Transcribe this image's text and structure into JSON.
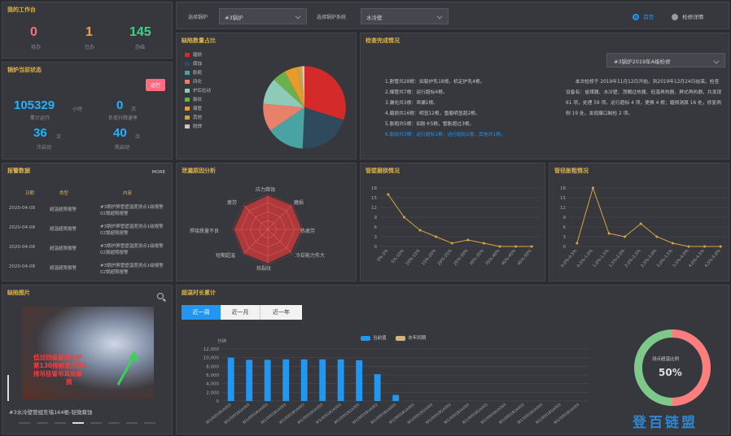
{
  "colors": {
    "accent": "#e0b24a",
    "blue": "#2196f3",
    "red": "#d42a2a",
    "orange": "#f0a04b",
    "green": "#3fd28a",
    "pink": "#ff6b81"
  },
  "header": {
    "boiler_label": "选择锅炉",
    "boiler_value": "#3锅炉",
    "system_label": "选择锅炉系统",
    "system_value": "水冷壁",
    "radio_home": "首页",
    "radio_detail": "检修详情"
  },
  "workbench": {
    "title": "我的工作台",
    "items": [
      {
        "value": "0",
        "label": "待办",
        "color": "#ff6b81"
      },
      {
        "value": "1",
        "label": "已办",
        "color": "#f0a04b"
      },
      {
        "value": "145",
        "label": "办结",
        "color": "#3fd28a"
      }
    ]
  },
  "status": {
    "title": "锅炉当前状态",
    "badge": "运行",
    "items": [
      {
        "value": "105329",
        "unit": "小时",
        "label": "累计运行"
      },
      {
        "value": "0",
        "unit": "次",
        "label": "负荷升降速率"
      },
      {
        "value": "36",
        "unit": "次",
        "label": "冷启动"
      },
      {
        "value": "40",
        "unit": "次",
        "label": "热启动"
      }
    ]
  },
  "alarm": {
    "title": "报警数据",
    "more": "MORE",
    "headers": [
      "日期",
      "类型",
      "内容"
    ],
    "rows": [
      {
        "date": "2020-04-08",
        "type": "超温超限报警",
        "content": [
          "#3锅炉屏管壁温度测点1级报警",
          "02锅超限报警"
        ]
      },
      {
        "date": "2020-04-08",
        "type": "超温超限报警",
        "content": [
          "#3锅炉屏管壁温度测点1级报警",
          "02锅超限报警"
        ]
      },
      {
        "date": "2020-04-08",
        "type": "超温超限报警",
        "content": [
          "#3锅炉屏管壁温度测点1级报警",
          "02锅超限报警"
        ]
      },
      {
        "date": "2020-04-08",
        "type": "超温超限报警",
        "content": [
          "#3锅炉屏管壁温度测点1级报警",
          "02锅超限报警"
        ]
      }
    ]
  },
  "photo": {
    "title": "缺陷图片",
    "overlay": [
      "低过四级管排从炉",
      "第130排前至后第2",
      "排吊挂管吊耳处磨",
      "损"
    ],
    "caption": "#3水冷壁管组东墙164根-轻微腐蚀"
  },
  "defect_pie": {
    "title": "缺陷数量占比",
    "legend": [
      {
        "name": "磨损",
        "color": "#d42a2a"
      },
      {
        "name": "腐蚀",
        "color": "#2f4a5c"
      },
      {
        "name": "胀粗",
        "color": "#4aa3a3"
      },
      {
        "name": "四化",
        "color": "#e8806a"
      },
      {
        "name": "炉后拉动",
        "color": "#8fc9b8"
      },
      {
        "name": "裂纹",
        "color": "#6ab04c"
      },
      {
        "name": "爆管",
        "color": "#e89a2a"
      },
      {
        "name": "其他",
        "color": "#c9a24a"
      },
      {
        "name": "脱焊",
        "color": "#cfc7c0"
      }
    ]
  },
  "inspection": {
    "title": "检查完成情况",
    "dropdown": "#3锅炉2019年A级检修",
    "items": [
      {
        "text": "1.割管共28根：如裂炉乳18根，机定护乳4根。",
        "hl": false
      },
      {
        "text": "2.爆管共7根：运行超标4根。",
        "hl": false
      },
      {
        "text": "3.漏化共3根：泄漏1根。",
        "hl": false
      },
      {
        "text": "4.磨损共16根：明显12根，重磨明显超2根。",
        "hl": false
      },
      {
        "text": "5.胀粗共5根：如胀卡5根，管胀超过3根。",
        "hl": false
      },
      {
        "text": "6.裂纹共3根：运行超标1根，运行超标1根，其他共1根。",
        "hl": true
      }
    ],
    "summary": "本次检修于 2019年11月12日开始，到2019年12月24日结束。检查设备有：省煤器、水冷壁、顶棚过热器、低温再热器、屏式再热器，共发现 61 项，处理 59 项，运行超标 4 项，更换 4 根；磨损测厚 16 处，修复两侧 19 处，发现爆口制检 2 项。"
  },
  "radar": {
    "title": "泄漏原因分析",
    "axes": [
      "应力腐蚀",
      "磨损",
      "热疲劳",
      "冷却能力失大",
      "热裂纹",
      "短期超温",
      "焊接质量不良",
      "疲劳"
    ]
  },
  "chart_wear": {
    "title": "管壁磨损情况",
    "chart_data": {
      "type": "line",
      "categories": [
        "0%-5%",
        "5%-10%",
        "10%-15%",
        "15%-20%",
        "20%-25%",
        "25%-30%",
        "30%-35%",
        "35%-40%",
        "40%-45%",
        "45%-50%"
      ],
      "values": [
        16,
        9,
        5,
        3,
        1,
        2,
        1,
        0,
        0,
        0
      ],
      "ylim": [
        0,
        18
      ],
      "yticks": [
        0,
        3,
        6,
        9,
        12,
        15,
        18
      ]
    }
  },
  "chart_pipe": {
    "title": "管径胀粗情况",
    "chart_data": {
      "type": "line",
      "categories": [
        "0.0%-0.5%",
        "0.5%-1.0%",
        "1.0%-1.5%",
        "1.5%-2.0%",
        "2.0%-2.5%",
        "2.5%-3.0%",
        "3.0%-3.5%",
        "3.5%-4.0%",
        "4.0%-4.5%",
        "4.5%-5.0%"
      ],
      "values": [
        1,
        18,
        4,
        3,
        7,
        3,
        1,
        0,
        0,
        0
      ],
      "ylim": [
        0,
        18
      ],
      "yticks": [
        0,
        3,
        6,
        9,
        12,
        15,
        18
      ]
    }
  },
  "overtemp": {
    "title": "超温时长累计",
    "tabs": [
      "近一周",
      "近一月",
      "近一年"
    ],
    "gauge_label": "测点超温比例",
    "gauge_value": "50%",
    "gauge_fraction": 0.5,
    "chart_data": {
      "type": "bar",
      "yunit": "分钟",
      "legend": [
        "当前值",
        "去年同期"
      ],
      "categories": [
        "W1/0001B1A003",
        "W1/0001B1A003",
        "W1/0001B1A003",
        "W1/0001B1A003",
        "W1/0001B1A003",
        "W1/0001B1A003",
        "W1/0001B1A003",
        "W1/0001B1A003",
        "W1/0001B1A003",
        "W1/0001B1A003",
        "W1/0001B1A003",
        "W1/0001B1A003",
        "W1/0001B1A003",
        "W1/0001B1A003",
        "W1/0001B1A003",
        "W1/0001B1A003",
        "W1/0001B1A003",
        "W1/0001B1A003",
        "W1/0001B1A003",
        "W1/0001B1A003"
      ],
      "values": [
        10000,
        9500,
        9500,
        9600,
        9600,
        9600,
        9600,
        9400,
        6200,
        1400,
        0,
        0,
        0,
        0,
        0,
        0,
        0,
        0,
        0,
        0
      ],
      "ylim": [
        0,
        12000
      ],
      "yticks": [
        0,
        2000,
        4000,
        6000,
        8000,
        10000,
        12000
      ]
    }
  },
  "watermark": "登百链盟"
}
